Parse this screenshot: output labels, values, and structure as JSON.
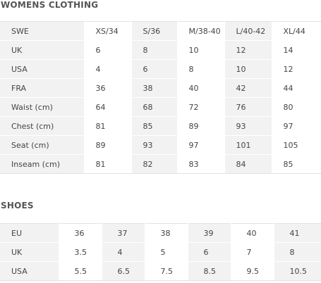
{
  "womens_clothing": {
    "title": "WOMENS CLOTHING",
    "rows": [
      [
        "SWE",
        "XS/34",
        "S/36",
        "M/38-40",
        "L/40-42",
        "XL/44"
      ],
      [
        "UK",
        "6",
        "8",
        "10",
        "12",
        "14"
      ],
      [
        "USA",
        "4",
        "6",
        "8",
        "10",
        "12"
      ],
      [
        "FRA",
        "36",
        "38",
        "40",
        "42",
        "44"
      ],
      [
        "Waist (cm)",
        "64",
        "68",
        "72",
        "76",
        "80"
      ],
      [
        "Chest (cm)",
        "81",
        "85",
        "89",
        "93",
        "97"
      ],
      [
        "Seat (cm)",
        "89",
        "93",
        "97",
        "101",
        "105"
      ],
      [
        "Inseam (cm)",
        "81",
        "82",
        "83",
        "84",
        "85"
      ]
    ]
  },
  "shoes": {
    "title": "SHOES",
    "rows": [
      [
        "EU",
        "36",
        "37",
        "38",
        "39",
        "40",
        "41"
      ],
      [
        "UK",
        "3.5",
        "4",
        "5",
        "6",
        "7",
        "8"
      ],
      [
        "USA",
        "5.5",
        "6.5",
        "7.5",
        "8.5",
        "9.5",
        "10.5"
      ]
    ]
  },
  "colors": {
    "shaded_column": "#f2f2f2",
    "text": "#444444",
    "title": "#555555"
  }
}
